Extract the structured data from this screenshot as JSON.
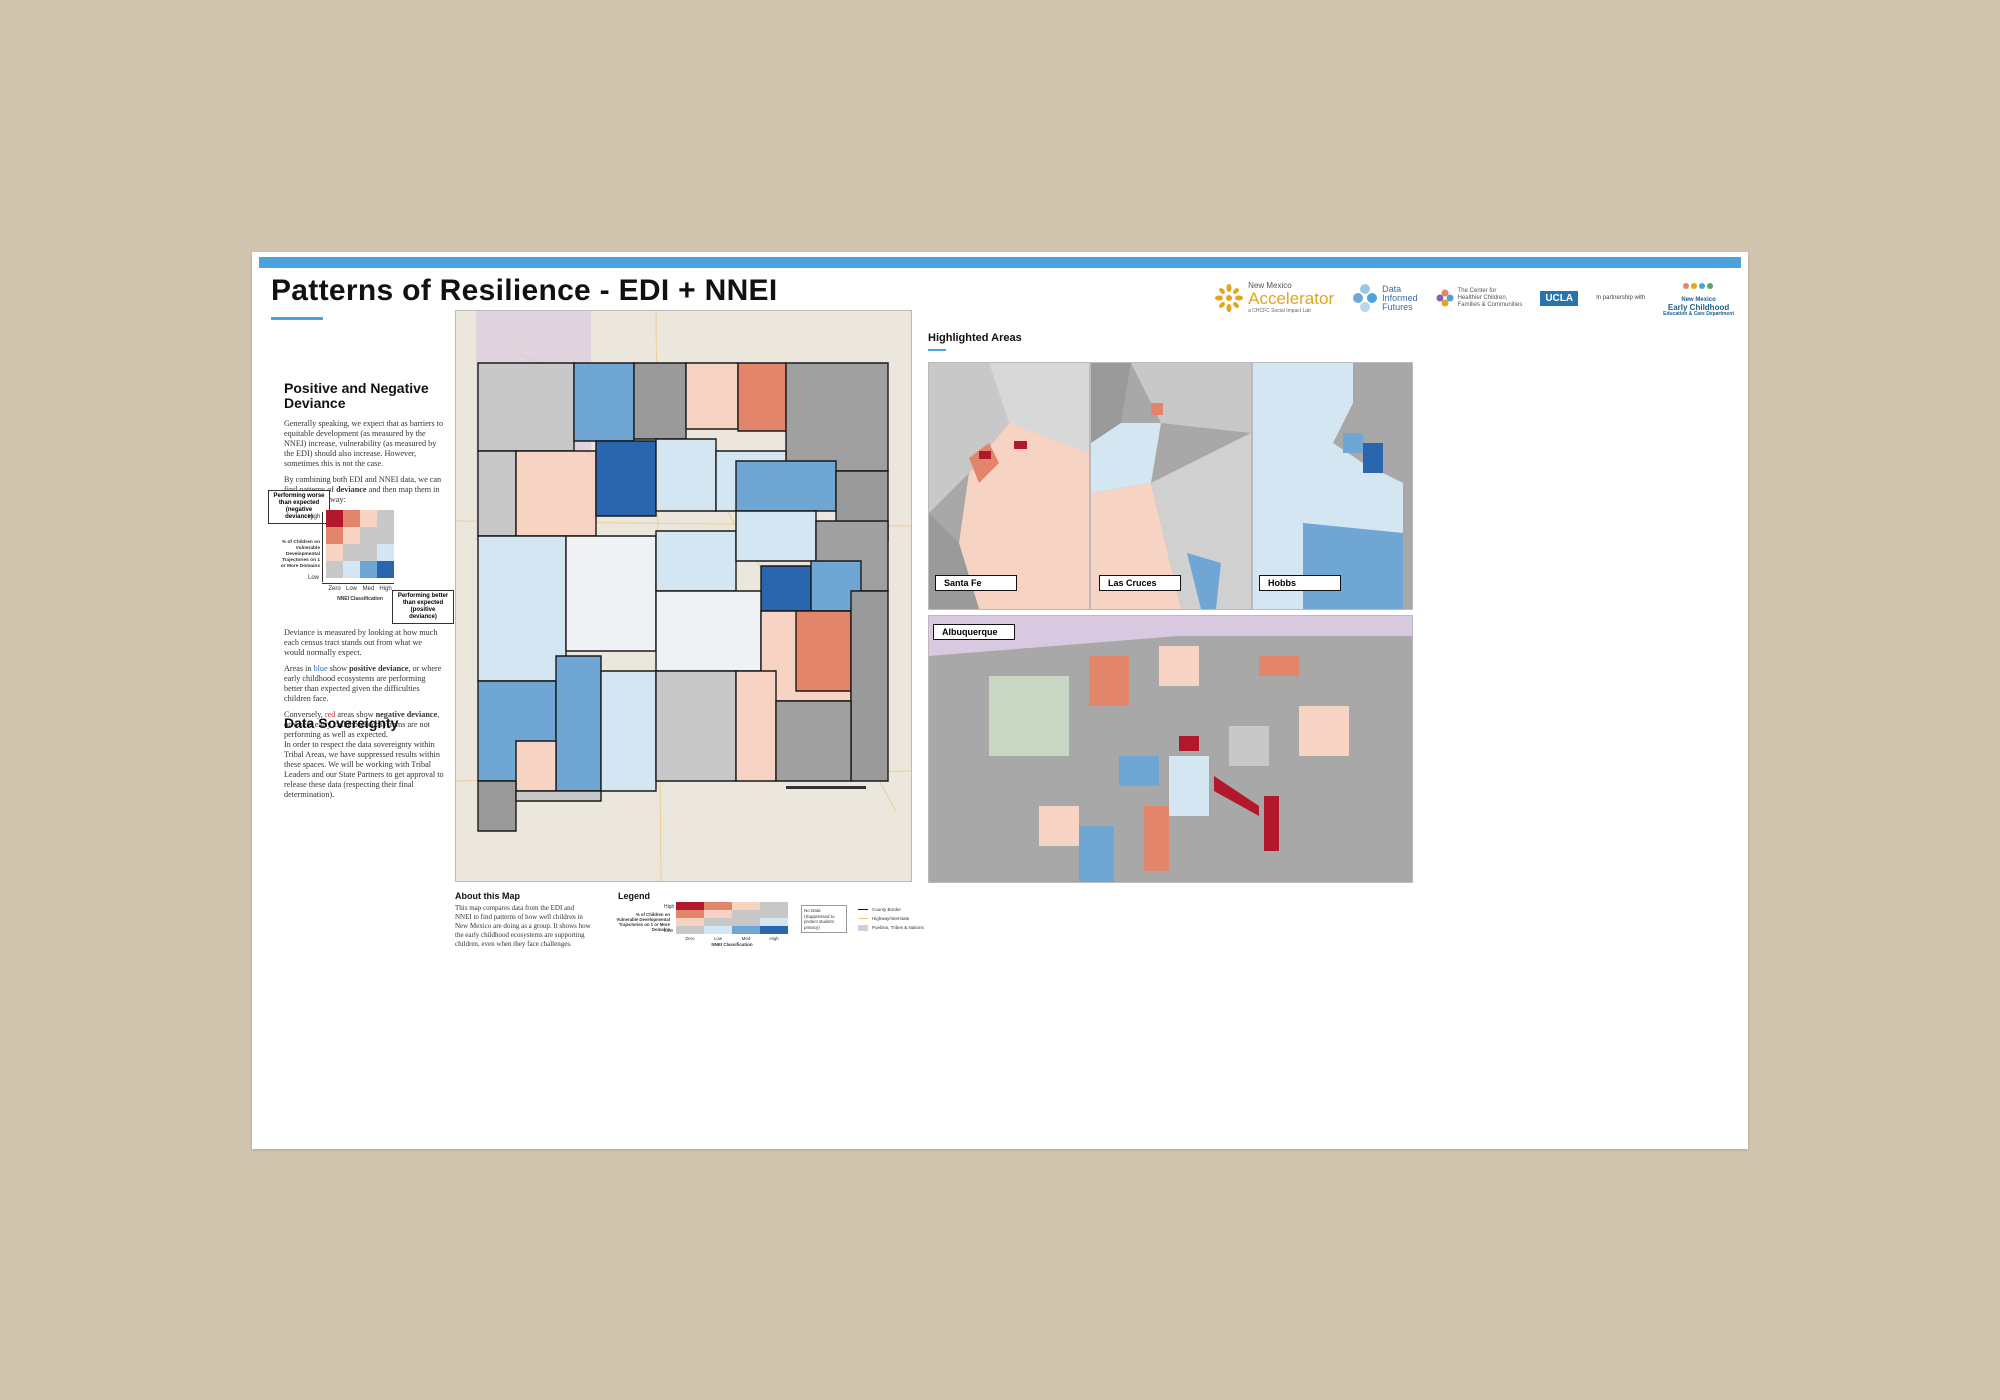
{
  "header": {
    "title": "Patterns of Resilience - EDI + NNEI",
    "logos": {
      "accelerator_top": "New Mexico",
      "accelerator_name": "Accelerator",
      "accelerator_sub": "a CHCFC Social Impact Lab",
      "dif_line1": "Data",
      "dif_line2": "Informed",
      "dif_line3": "Futures",
      "chc_line1": "The Center for",
      "chc_line2": "Healthier Children,",
      "chc_line3": "Families & Communities",
      "ucla": "UCLA",
      "partnership": "In partnership with",
      "ece_line1": "New Mexico",
      "ece_line2": "Early Childhood",
      "ece_line3": "Education & Care Department"
    }
  },
  "left": {
    "deviance_title": "Positive and Negative Deviance",
    "intro_p1": "Generally speaking, we expect that as barriers to equitable development (as measured by the NNEI) increase, vulnerability (as measured by the EDI) should also increase. However, sometimes this is not the case.",
    "intro_p2_a": "By combining both EDI and NNEI data, we can find patterns of ",
    "intro_p2_b": "deviance",
    "intro_p2_c": " and then map them in the following way:",
    "matrix": {
      "callout_top": "Performing worse than expected (negative deviance)",
      "callout_bottom": "Performing better than expected (positive deviance)",
      "y_high": "High",
      "y_low": "Low",
      "y_label": "% of Children on Vulnerable Developmental Trajectories on 1 or More Domains",
      "x_ticks": [
        "Zero",
        "Low",
        "Med",
        "High"
      ],
      "x_label": "NNEI Classification",
      "colors": [
        [
          "#b2182b",
          "#e3856a",
          "#f7d3c4",
          "#c8c8c8"
        ],
        [
          "#e3856a",
          "#f7d3c4",
          "#c8c8c8",
          "#c8c8c8"
        ],
        [
          "#f7d3c4",
          "#c8c8c8",
          "#c8c8c8",
          "#d4e6f2"
        ],
        [
          "#c8c8c8",
          "#d4e6f2",
          "#6fa6d4",
          "#2a66ad"
        ]
      ]
    },
    "deviance_p1": "Deviance is measured by looking at how much each census tract stands out from what we would normally expect.",
    "deviance_p2_a": "Areas in ",
    "deviance_p2_blue": "blue",
    "deviance_p2_b": " show ",
    "deviance_p2_bold": "positive deviance",
    "deviance_p2_c": ", or where early childhood ecosystems are performing better than expected given the difficulties children face.",
    "deviance_p3_a": "Conversely, ",
    "deviance_p3_red": "red",
    "deviance_p3_b": " areas show ",
    "deviance_p3_bold": "negative deviance",
    "deviance_p3_c": ", or where early childhood ecosystems are not performing as well as expected.",
    "sovereignty_title": "Data Sovereignty",
    "sovereignty_text": "In order to respect the data sovereignty within Tribal Areas, we have suppressed results within these spaces. We will be working with Tribal Leaders and our State Partners to get approval to release these data (respecting their final determination)."
  },
  "about": {
    "title": "About this Map",
    "text": "This map compares data from the EDI and NNEI to find patterns of how well children in New Mexico are doing as a group. It shows how the early childhood ecosystems are supporting children, even when they face challenges."
  },
  "legend": {
    "title": "Legend",
    "y_high": "High",
    "y_low": "Low",
    "y_label": "% of Children on Vulnerable Developmental Trajectories on 1 or More Domains",
    "x_ticks": [
      "Zero",
      "Low",
      "Med",
      "High"
    ],
    "x_label": "NNEI Classification",
    "no_data": "No Data (Suppressed to protect student privacy)",
    "county_border": "County Border",
    "highway": "Highway/Interstate",
    "pueblos": "Pueblos, Tribes & Nations"
  },
  "highlighted": {
    "title": "Highlighted Areas",
    "insets": [
      "Santa Fe",
      "Las Cruces",
      "Hobbs",
      "Albuquerque"
    ]
  },
  "colors": {
    "accent": "#4aa3dc",
    "neg_strong": "#b2182b",
    "neg_mid": "#e3856a",
    "neg_light": "#f7d3c4",
    "neutral": "#c8c8c8",
    "pos_light": "#d4e6f2",
    "pos_mid": "#6fa6d4",
    "pos_strong": "#2a66ad",
    "background": "#d1c5af"
  }
}
